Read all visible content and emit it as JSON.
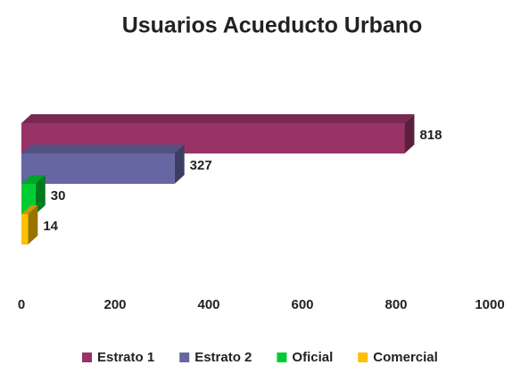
{
  "chart_data": {
    "type": "bar3d_horizontal",
    "title": "Usuarios Acueducto Urbano",
    "series": [
      {
        "name": "Estrato 1",
        "color": "#993366",
        "values": [
          818
        ]
      },
      {
        "name": "Estrato 2",
        "color": "#6666a3",
        "values": [
          327
        ]
      },
      {
        "name": "Oficial",
        "color": "#00cc33",
        "values": [
          30
        ]
      },
      {
        "name": "Comercial",
        "color": "#ffc000",
        "values": [
          14
        ]
      }
    ],
    "xlim": [
      0,
      1000
    ],
    "xticks": [
      0,
      200,
      400,
      600,
      800,
      1000
    ],
    "grid": false,
    "legend": "bottom"
  }
}
